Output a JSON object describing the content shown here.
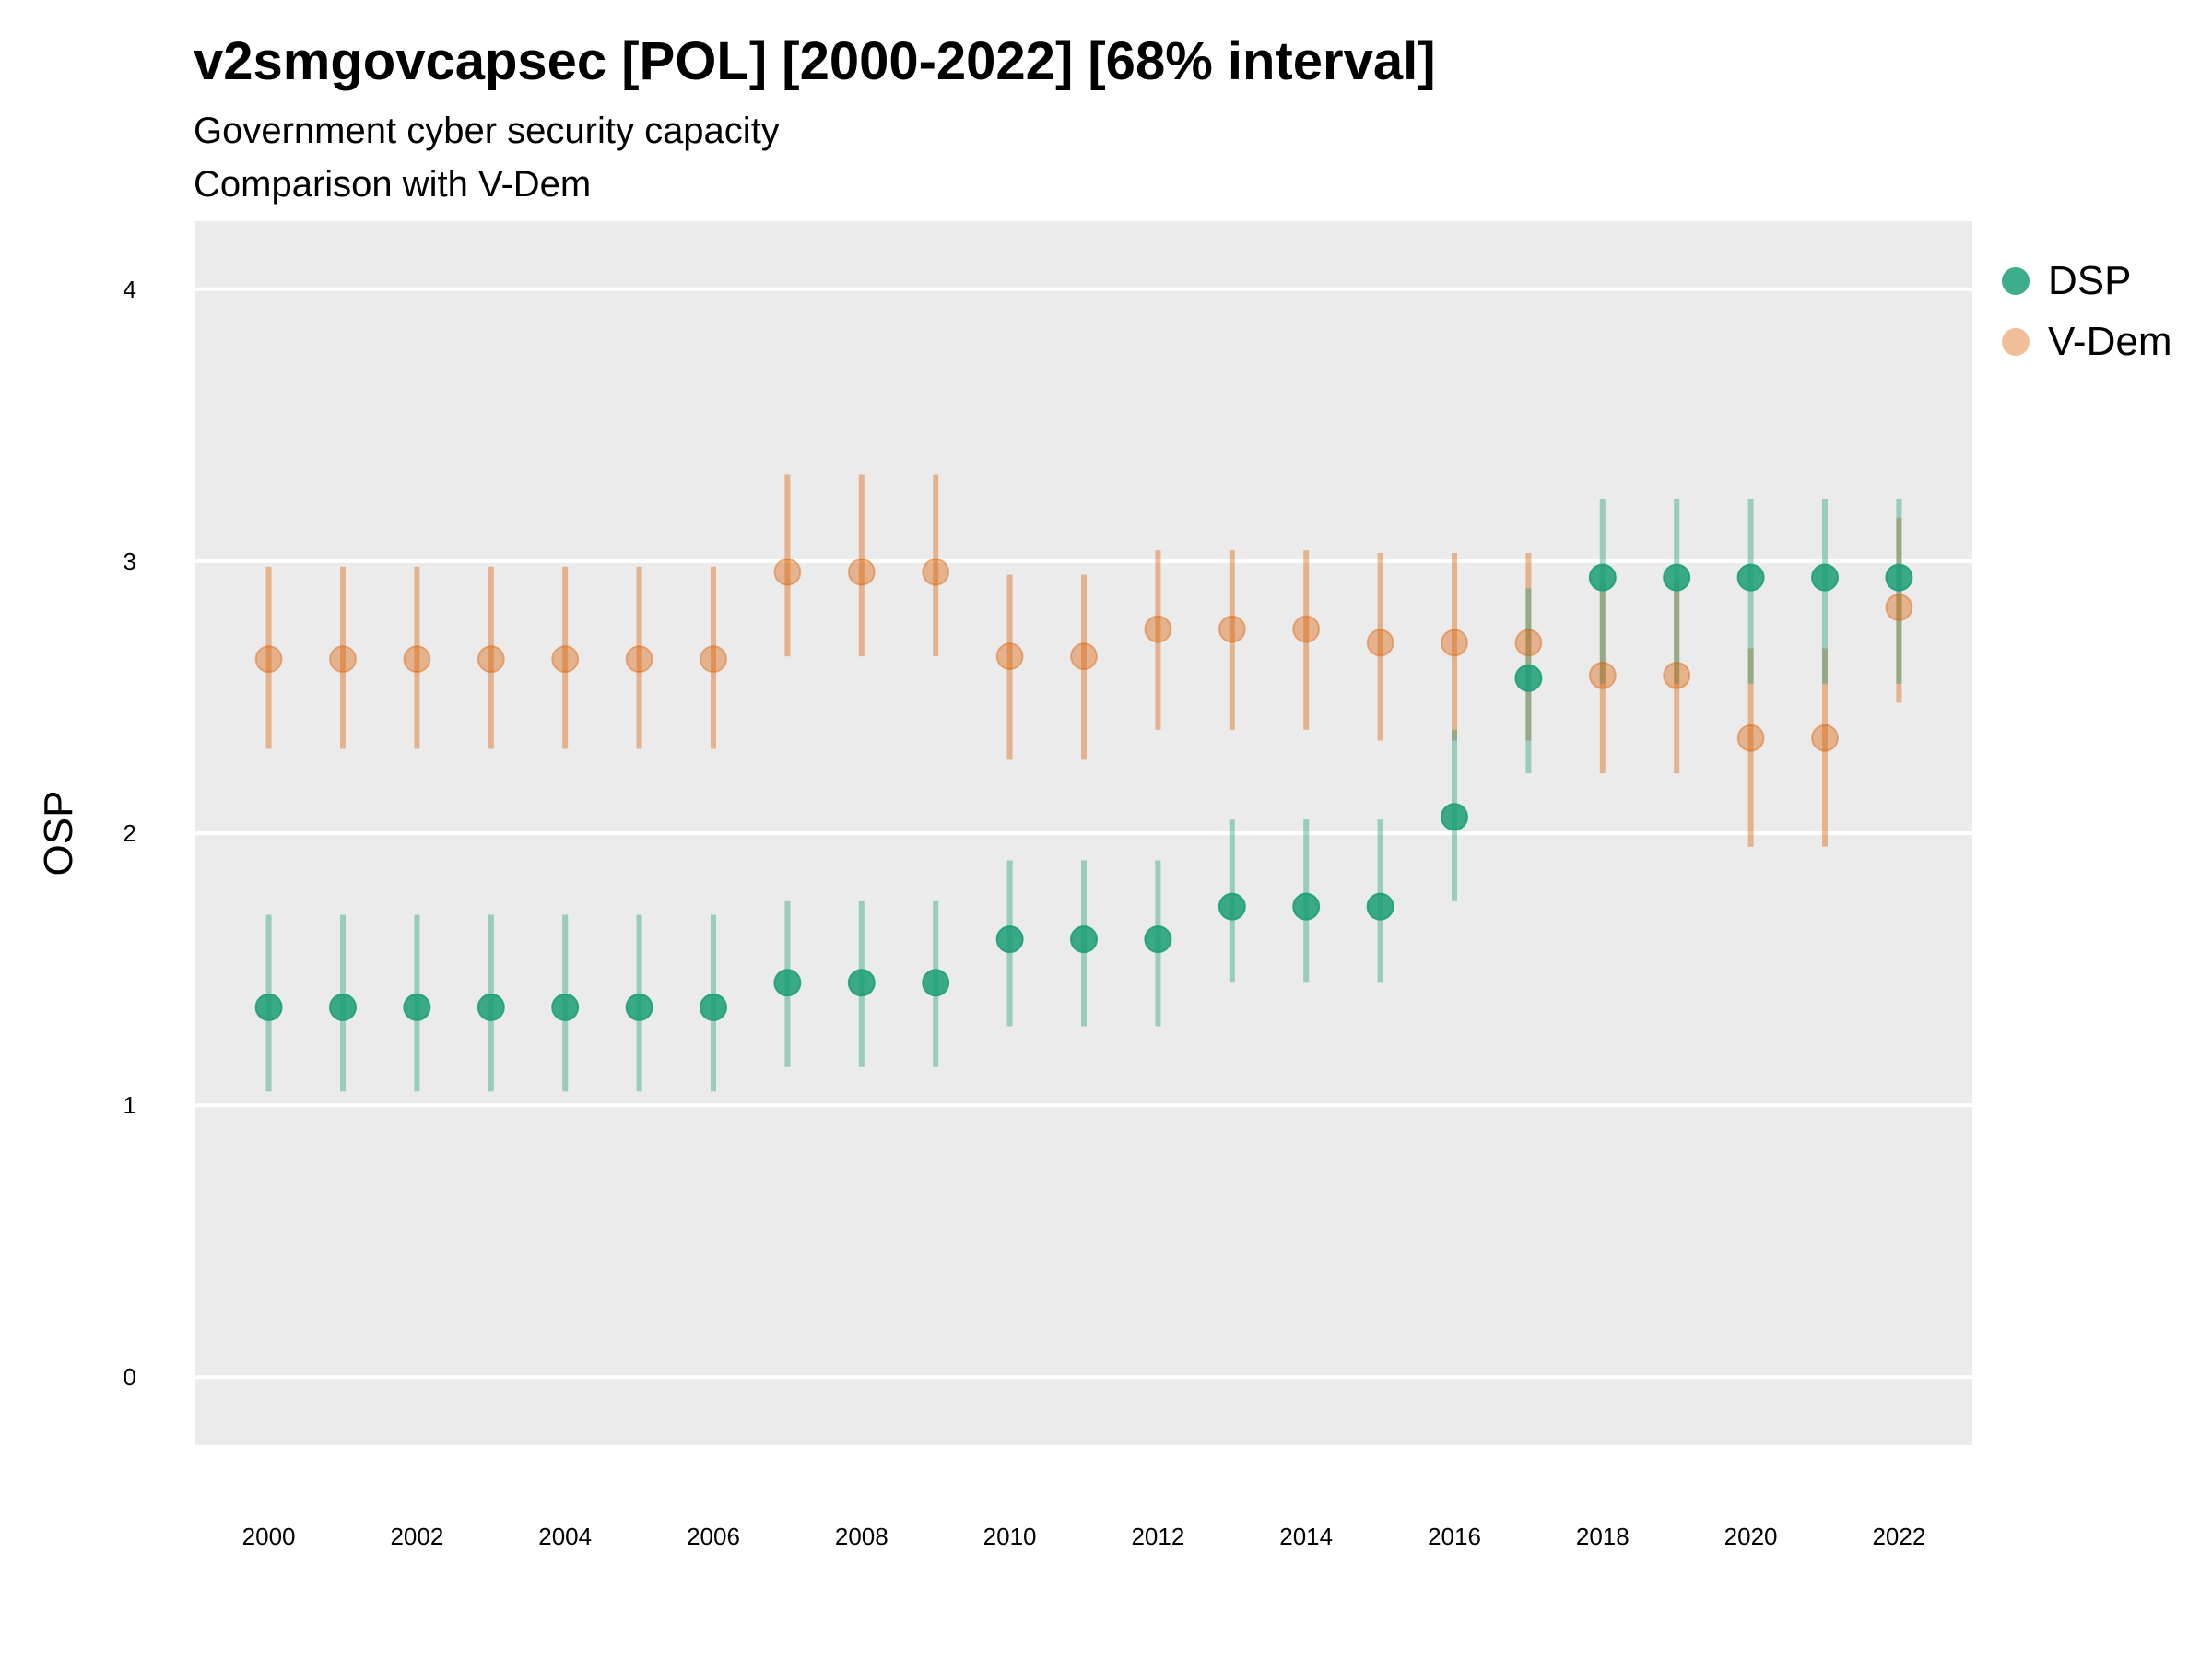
{
  "chart_data": {
    "type": "scatter",
    "title": "v2smgovcapsec [POL] [2000-2022] [68% interval]",
    "subtitle": "Government cyber security capacity",
    "caption": "Comparison with V-Dem",
    "xlabel": "",
    "ylabel": "OSP",
    "xlim": [
      2000,
      2022
    ],
    "ylim": [
      -0.25,
      4.25
    ],
    "x_ticks": [
      2000,
      2002,
      2004,
      2006,
      2008,
      2010,
      2012,
      2014,
      2016,
      2018,
      2020,
      2022
    ],
    "y_ticks": [
      0,
      1,
      2,
      3,
      4
    ],
    "grid": true,
    "legend_position": "right",
    "x": [
      2000,
      2001,
      2002,
      2003,
      2004,
      2005,
      2006,
      2007,
      2008,
      2009,
      2010,
      2011,
      2012,
      2013,
      2014,
      2015,
      2016,
      2017,
      2018,
      2019,
      2020,
      2021,
      2022
    ],
    "series": [
      {
        "name": "DSP",
        "color": "#1b9e77",
        "values": [
          1.36,
          1.36,
          1.36,
          1.36,
          1.36,
          1.36,
          1.36,
          1.45,
          1.45,
          1.45,
          1.61,
          1.61,
          1.61,
          1.73,
          1.73,
          1.73,
          2.06,
          2.57,
          2.94,
          2.94,
          2.94,
          2.94,
          2.94
        ],
        "lower": [
          1.05,
          1.05,
          1.05,
          1.05,
          1.05,
          1.05,
          1.05,
          1.14,
          1.14,
          1.14,
          1.29,
          1.29,
          1.29,
          1.45,
          1.45,
          1.45,
          1.75,
          2.22,
          2.55,
          2.55,
          2.55,
          2.55,
          2.55
        ],
        "upper": [
          1.7,
          1.7,
          1.7,
          1.7,
          1.7,
          1.7,
          1.7,
          1.75,
          1.75,
          1.75,
          1.9,
          1.9,
          1.9,
          2.05,
          2.05,
          2.05,
          2.38,
          2.9,
          3.23,
          3.23,
          3.23,
          3.23,
          3.23
        ]
      },
      {
        "name": "V-Dem",
        "color": "#d95f02",
        "values": [
          2.64,
          2.64,
          2.64,
          2.64,
          2.64,
          2.64,
          2.64,
          2.96,
          2.96,
          2.96,
          2.65,
          2.65,
          2.75,
          2.75,
          2.75,
          2.7,
          2.7,
          2.7,
          2.58,
          2.58,
          2.35,
          2.35,
          2.83
        ],
        "lower": [
          2.31,
          2.31,
          2.31,
          2.31,
          2.31,
          2.31,
          2.31,
          2.65,
          2.65,
          2.65,
          2.27,
          2.27,
          2.38,
          2.38,
          2.38,
          2.34,
          2.34,
          2.34,
          2.22,
          2.22,
          1.95,
          1.95,
          2.48
        ],
        "upper": [
          2.98,
          2.98,
          2.98,
          2.98,
          2.98,
          2.98,
          2.98,
          3.32,
          3.32,
          3.32,
          2.95,
          2.95,
          3.04,
          3.04,
          3.04,
          3.03,
          3.03,
          3.03,
          2.93,
          2.93,
          2.68,
          2.68,
          3.16
        ]
      }
    ]
  }
}
